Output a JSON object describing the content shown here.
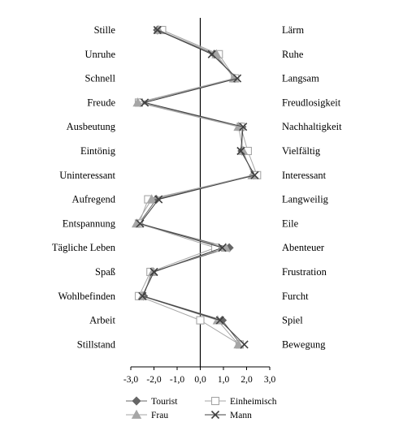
{
  "chart_data": {
    "type": "line",
    "orientation": "horizontal-profile",
    "left_labels": [
      "Stille",
      "Unruhe",
      "Schnell",
      "Freude",
      "Ausbeutung",
      "Eintönig",
      "Uninteressant",
      "Aufregend",
      "Entspannung",
      "Tägliche Leben",
      "Spaß",
      "Wohlbefinden",
      "Arbeit",
      "Stillstand"
    ],
    "right_labels": [
      "Lärm",
      "Ruhe",
      "Langsam",
      "Freudlosigkeit",
      "Nachhaltigkeit",
      "Vielfältig",
      "Interessant",
      "Langweilig",
      "Eile",
      "Abenteuer",
      "Frustration",
      "Furcht",
      "Spiel",
      "Bewegung"
    ],
    "xlim": [
      -3.0,
      3.0
    ],
    "xticks": [
      "-3,0",
      "-2,0",
      "-1,0",
      "0,0",
      "1,0",
      "2,0",
      "3,0"
    ],
    "xtick_values": [
      -3,
      -2,
      -1,
      0,
      1,
      2,
      3
    ],
    "series": [
      {
        "name": "Tourist",
        "marker": "diamond",
        "color": "#666666",
        "values": [
          -1.85,
          0.6,
          1.5,
          -2.6,
          1.8,
          1.8,
          2.3,
          -1.9,
          -2.65,
          1.25,
          -2.1,
          -2.45,
          0.95,
          1.75
        ]
      },
      {
        "name": "Einheimisch",
        "marker": "square-open",
        "color": "#a6a6a6",
        "values": [
          -1.65,
          0.8,
          1.5,
          -2.65,
          1.75,
          2.05,
          2.45,
          -2.25,
          -2.65,
          0.65,
          -2.15,
          -2.65,
          0.0,
          1.7
        ]
      },
      {
        "name": "Frau",
        "marker": "triangle",
        "color": "#a6a6a6",
        "values": [
          -1.8,
          0.7,
          1.45,
          -2.7,
          1.65,
          1.85,
          2.25,
          -2.1,
          -2.75,
          1.1,
          -2.05,
          -2.5,
          0.75,
          1.65
        ]
      },
      {
        "name": "Mann",
        "marker": "x",
        "color": "#404040",
        "values": [
          -1.85,
          0.5,
          1.6,
          -2.4,
          1.85,
          1.75,
          2.35,
          -1.8,
          -2.6,
          0.95,
          -2.0,
          -2.5,
          0.85,
          1.9
        ]
      }
    ],
    "legend_position": "bottom",
    "grid": false
  }
}
